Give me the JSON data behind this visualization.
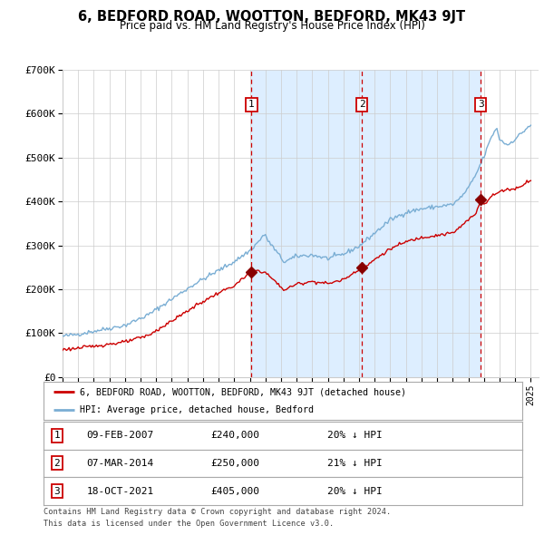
{
  "title": "6, BEDFORD ROAD, WOOTTON, BEDFORD, MK43 9JT",
  "subtitle": "Price paid vs. HM Land Registry's House Price Index (HPI)",
  "legend_line1": "6, BEDFORD ROAD, WOOTTON, BEDFORD, MK43 9JT (detached house)",
  "legend_line2": "HPI: Average price, detached house, Bedford",
  "footer1": "Contains HM Land Registry data © Crown copyright and database right 2024.",
  "footer2": "This data is licensed under the Open Government Licence v3.0.",
  "transactions": [
    {
      "num": 1,
      "date": "09-FEB-2007",
      "price": 240000,
      "hpi_pct": "20%",
      "x_year": 2007.107
    },
    {
      "num": 2,
      "date": "07-MAR-2014",
      "price": 250000,
      "hpi_pct": "21%",
      "x_year": 2014.178
    },
    {
      "num": 3,
      "date": "18-OCT-2021",
      "price": 405000,
      "hpi_pct": "20%",
      "x_year": 2021.795
    }
  ],
  "hpi_color": "#7aaed4",
  "property_color": "#cc0000",
  "dashed_line_color": "#cc0000",
  "shade_color": "#ddeeff",
  "marker_color": "#880000",
  "grid_color": "#cccccc",
  "background_color": "#ffffff",
  "ylim": [
    0,
    700000
  ],
  "xlim_start": 1995.0,
  "xlim_end": 2025.5,
  "yticks": [
    0,
    100000,
    200000,
    300000,
    400000,
    500000,
    600000,
    700000
  ]
}
